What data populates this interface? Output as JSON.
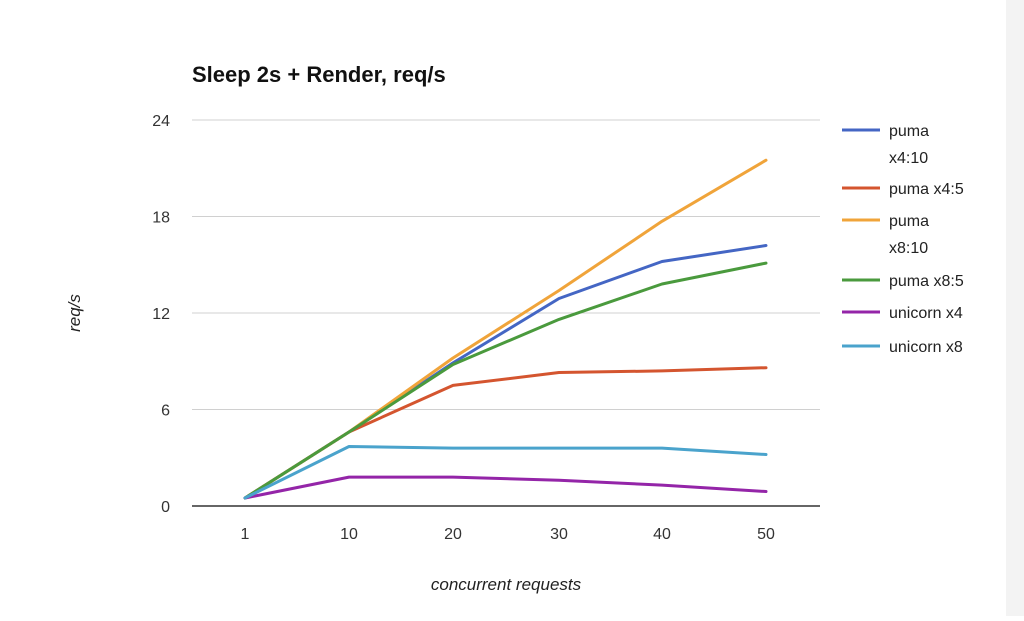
{
  "chart_data": {
    "type": "line",
    "title": "Sleep 2s + Render, req/s",
    "xlabel": "concurrent requests",
    "ylabel": "req/s",
    "categories": [
      "1",
      "10",
      "20",
      "30",
      "40",
      "50"
    ],
    "ylim": [
      0,
      24
    ],
    "yticks": [
      "0",
      "6",
      "12",
      "18",
      "24"
    ],
    "grid": true,
    "legend_position": "right",
    "series": [
      {
        "name": "puma x4:10",
        "name_lines": [
          "puma",
          "x4:10"
        ],
        "color": "#4466c4",
        "values": [
          0.5,
          4.6,
          8.9,
          12.9,
          15.2,
          16.2
        ]
      },
      {
        "name": "puma x4:5",
        "name_lines": [
          "puma x4:5"
        ],
        "color": "#d4552f",
        "values": [
          0.5,
          4.6,
          7.5,
          8.3,
          8.4,
          8.6
        ]
      },
      {
        "name": "puma x8:10",
        "name_lines": [
          "puma",
          "x8:10"
        ],
        "color": "#f0a43a",
        "values": [
          0.5,
          4.6,
          9.2,
          13.4,
          17.7,
          21.5
        ]
      },
      {
        "name": "puma x8:5",
        "name_lines": [
          "puma x8:5"
        ],
        "color": "#4a9a3d",
        "values": [
          0.5,
          4.6,
          8.8,
          11.6,
          13.8,
          15.1
        ]
      },
      {
        "name": "unicorn x4",
        "name_lines": [
          "unicorn x4"
        ],
        "color": "#9425a8",
        "values": [
          0.5,
          1.8,
          1.8,
          1.6,
          1.3,
          0.9
        ]
      },
      {
        "name": "unicorn x8",
        "name_lines": [
          "unicorn x8"
        ],
        "color": "#4aa3cc",
        "values": [
          0.5,
          3.7,
          3.6,
          3.6,
          3.6,
          3.2
        ]
      }
    ]
  }
}
